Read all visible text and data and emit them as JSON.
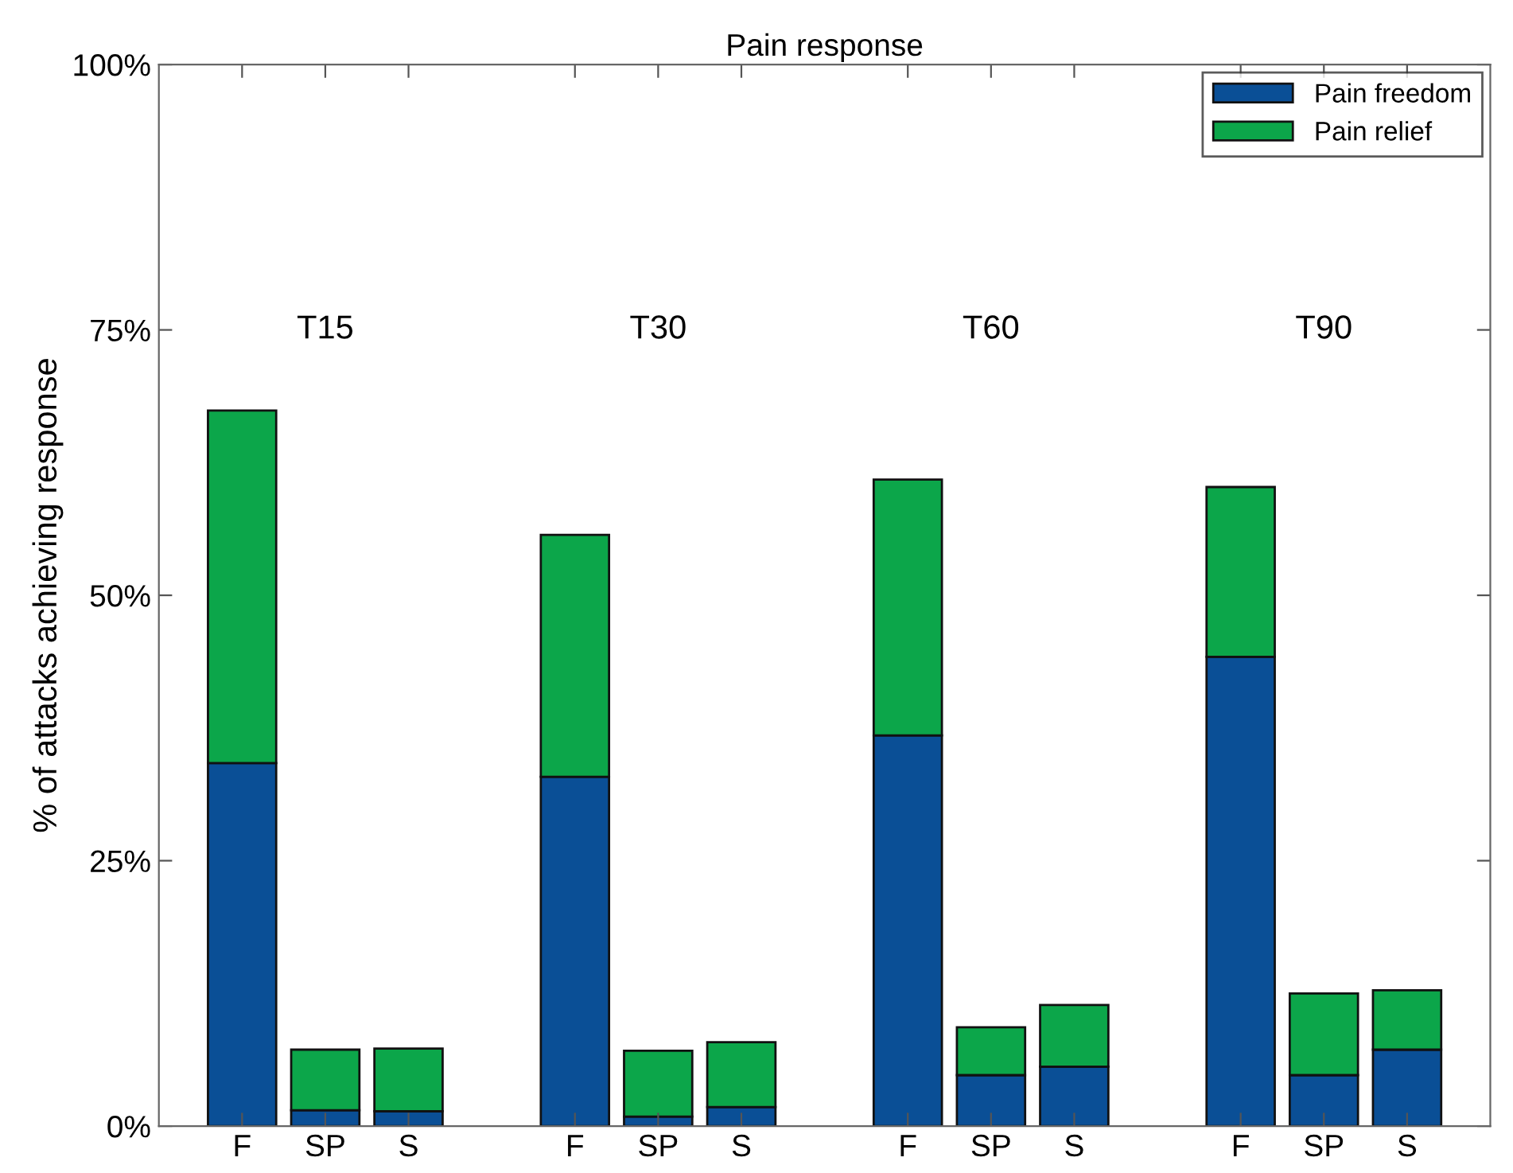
{
  "chart_data": {
    "type": "bar",
    "title": "Pain response",
    "ylabel": "% of attacks achieving response",
    "categories": [
      "F",
      "SP",
      "S",
      null,
      "F",
      "SP",
      "S",
      null,
      "F",
      "SP",
      "S",
      null,
      "F",
      "SP",
      "S"
    ],
    "stacked": true,
    "series": [
      {
        "name": "Pain freedom",
        "color": "#0a4f96",
        "values": [
          34.2,
          1.5,
          1.4,
          null,
          32.9,
          0.9,
          1.8,
          null,
          36.8,
          4.8,
          5.6,
          null,
          44.2,
          4.8,
          7.2
        ]
      },
      {
        "name": "Pain relief",
        "color": "#0ca64a",
        "values": [
          33.2,
          5.7,
          5.9,
          null,
          22.8,
          6.2,
          6.1,
          null,
          24.1,
          4.5,
          5.8,
          null,
          16.0,
          7.7,
          5.6
        ]
      }
    ],
    "ylim": [
      0,
      100
    ],
    "yticks": [
      {
        "value": 0,
        "label": "0%"
      },
      {
        "value": 25,
        "label": "25%"
      },
      {
        "value": 50,
        "label": "50%"
      },
      {
        "value": 75,
        "label": "75%"
      },
      {
        "value": 100,
        "label": "100%"
      }
    ],
    "annotations": [
      "T15",
      "T30",
      "T60",
      "T90"
    ],
    "legend": "top right",
    "grid": false
  }
}
